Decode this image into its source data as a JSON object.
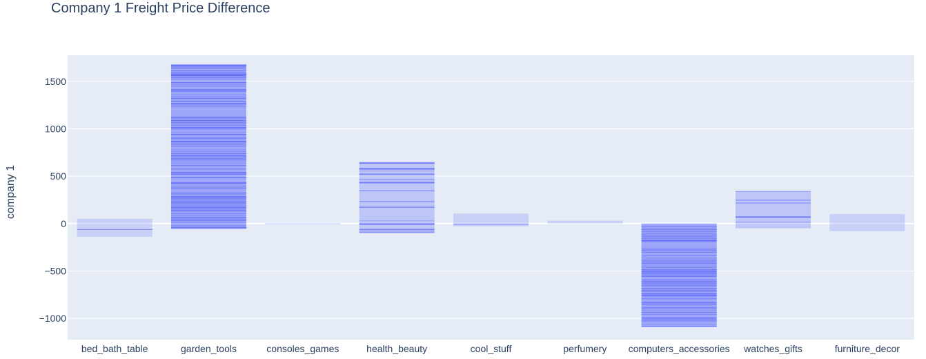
{
  "chart_data": {
    "type": "bar",
    "title": "Company 1 Freight Price Difference",
    "xlabel": "",
    "ylabel": "company 1",
    "ylim": [
      -1225,
      1775
    ],
    "yticks": [
      -1000,
      -500,
      0,
      500,
      1000,
      1500
    ],
    "ytick_labels": [
      "−1000",
      "−500",
      "0",
      "500",
      "1000",
      "1500"
    ],
    "categories": [
      "bed_bath_table",
      "garden_tools",
      "consoles_games",
      "health_beauty",
      "cool_stuff",
      "perfumery",
      "computers_accessories",
      "watches_gifts",
      "furniture_decor"
    ],
    "series": [
      {
        "values": [
          {
            "top": 50,
            "bottom": -140,
            "density": "light"
          },
          {
            "top": 1680,
            "bottom": -60,
            "density": "dense"
          },
          {
            "top": 5,
            "bottom": -10,
            "density": "light"
          },
          {
            "top": 650,
            "bottom": -90,
            "density": "medium"
          },
          {
            "top": 105,
            "bottom": -30,
            "density": "light"
          },
          {
            "top": 30,
            "bottom": 0,
            "density": "light"
          },
          {
            "top": 0,
            "bottom": -1090,
            "density": "dense"
          },
          {
            "top": 345,
            "bottom": -50,
            "density": "medium"
          },
          {
            "top": 100,
            "bottom": -80,
            "density": "light"
          }
        ]
      }
    ],
    "grid": true,
    "colors": {
      "bar": "#636efa",
      "plot_bg": "#e5ecf6",
      "grid": "#ffffff",
      "text": "#2a3f5f"
    }
  }
}
